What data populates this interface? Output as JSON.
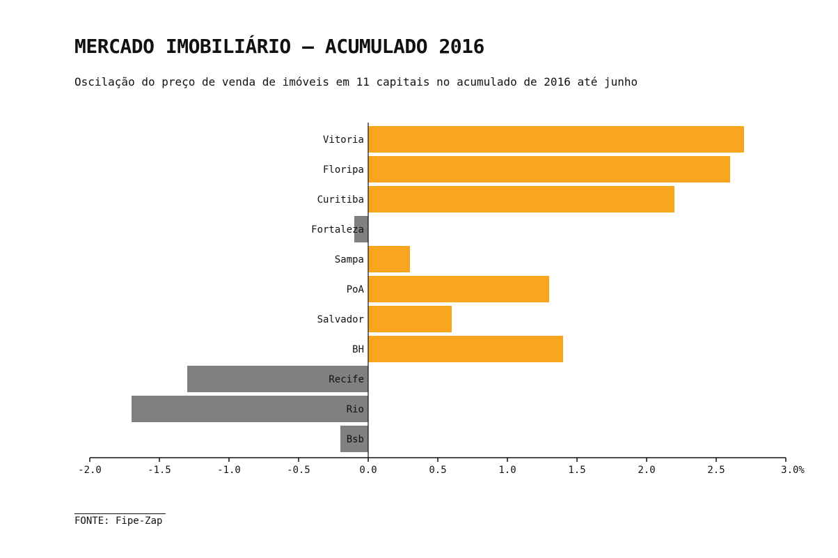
{
  "header": {
    "title": "MERCADO IMOBILIÁRIO – ACUMULADO 2016",
    "subtitle": "Oscilação do preço de venda de imóveis em 11 capitais no acumulado de 2016 até junho"
  },
  "footer": {
    "source": "FONTE: Fipe-Zap"
  },
  "colors": {
    "positive": "#F9A51E",
    "negative": "#808080",
    "axis": "#111111"
  },
  "chart_data": {
    "type": "bar",
    "orientation": "horizontal",
    "categories": [
      "Vitoria",
      "Floripa",
      "Curitiba",
      "Fortaleza",
      "Sampa",
      "PoA",
      "Salvador",
      "BH",
      "Recife",
      "Rio",
      "Bsb"
    ],
    "values": [
      2.7,
      2.6,
      2.2,
      -0.1,
      0.3,
      1.3,
      0.6,
      1.4,
      -1.3,
      -1.7,
      -0.2
    ],
    "xlim": [
      -2.0,
      3.0
    ],
    "xticks": [
      -2.0,
      -1.5,
      -1.0,
      -0.5,
      0.0,
      0.5,
      1.0,
      1.5,
      2.0,
      2.5,
      3.0
    ],
    "xtick_labels": [
      "-2.0",
      "-1.5",
      "-1.0",
      "-0.5",
      "0.0",
      "0.5",
      "1.0",
      "1.5",
      "2.0",
      "2.5",
      "3.0"
    ],
    "x_unit": "%",
    "grid": false,
    "legend": false
  }
}
